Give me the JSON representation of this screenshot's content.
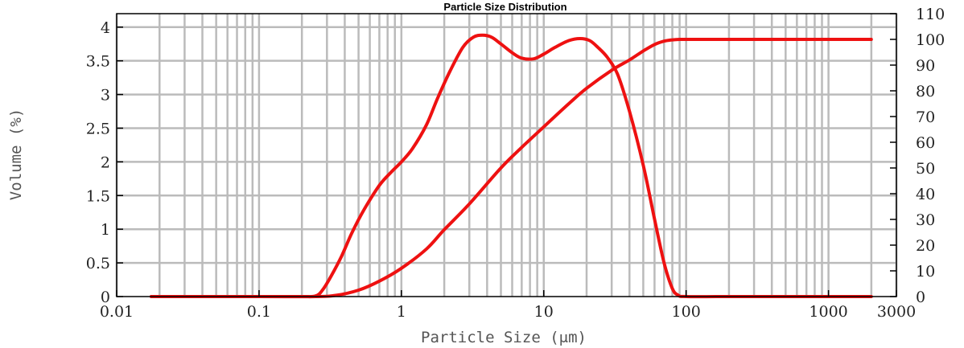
{
  "chart_data": {
    "type": "line",
    "title": "Particle Size Distribution",
    "xlabel": "Particle Size (μm)",
    "ylabel": "Volume (%)",
    "x_scale": "log",
    "xlim": [
      0.01,
      3000
    ],
    "ylim_left": [
      0,
      4.2
    ],
    "ylim_right": [
      0,
      110
    ],
    "x_tick_labels": [
      "0.01",
      "0.1",
      "1",
      "10",
      "100",
      "1000",
      "3000"
    ],
    "y_left_tick_labels": [
      "0",
      "0.5",
      "1",
      "1.5",
      "2",
      "2.5",
      "3",
      "3.5",
      "4"
    ],
    "y_right_tick_labels": [
      "0",
      "10",
      "20",
      "30",
      "40",
      "50",
      "60",
      "70",
      "80",
      "90",
      "100",
      "110"
    ],
    "grid": true,
    "line_color": "#ee1111",
    "grid_color": "#bbbbbb",
    "series": [
      {
        "axis": "left",
        "x": [
          0.0175,
          0.1,
          0.2,
          0.25,
          0.28,
          0.32,
          0.38,
          0.45,
          0.55,
          0.7,
          0.85,
          1.0,
          1.2,
          1.5,
          1.8,
          2.2,
          2.7,
          3.2,
          3.7,
          4.3,
          5.0,
          6.0,
          7.0,
          8.5,
          10,
          12,
          15,
          18,
          21,
          24,
          28,
          33,
          40,
          50,
          60,
          70,
          80,
          88,
          100,
          200,
          1000,
          2000
        ],
        "y": [
          0,
          0,
          0,
          0.01,
          0.1,
          0.3,
          0.6,
          0.95,
          1.3,
          1.65,
          1.85,
          2.0,
          2.2,
          2.55,
          2.95,
          3.35,
          3.7,
          3.85,
          3.88,
          3.85,
          3.75,
          3.62,
          3.54,
          3.53,
          3.6,
          3.7,
          3.8,
          3.83,
          3.8,
          3.7,
          3.55,
          3.3,
          2.75,
          1.95,
          1.15,
          0.5,
          0.12,
          0.02,
          0,
          0,
          0,
          0
        ]
      },
      {
        "axis": "right",
        "x": [
          0.0175,
          0.1,
          0.25,
          0.35,
          0.5,
          0.7,
          1.0,
          1.5,
          2.0,
          3.0,
          5.0,
          7.0,
          10,
          15,
          20,
          30,
          40,
          50,
          60,
          70,
          80,
          90,
          100,
          200,
          1000,
          2000
        ],
        "y": [
          0,
          0,
          0,
          0.5,
          2.5,
          6.0,
          11.0,
          18.5,
          26.0,
          36.0,
          50.0,
          58.0,
          66.0,
          75.0,
          81.0,
          88.0,
          92.0,
          95.5,
          98.0,
          99.3,
          99.8,
          100,
          100,
          100,
          100,
          100
        ]
      }
    ]
  }
}
